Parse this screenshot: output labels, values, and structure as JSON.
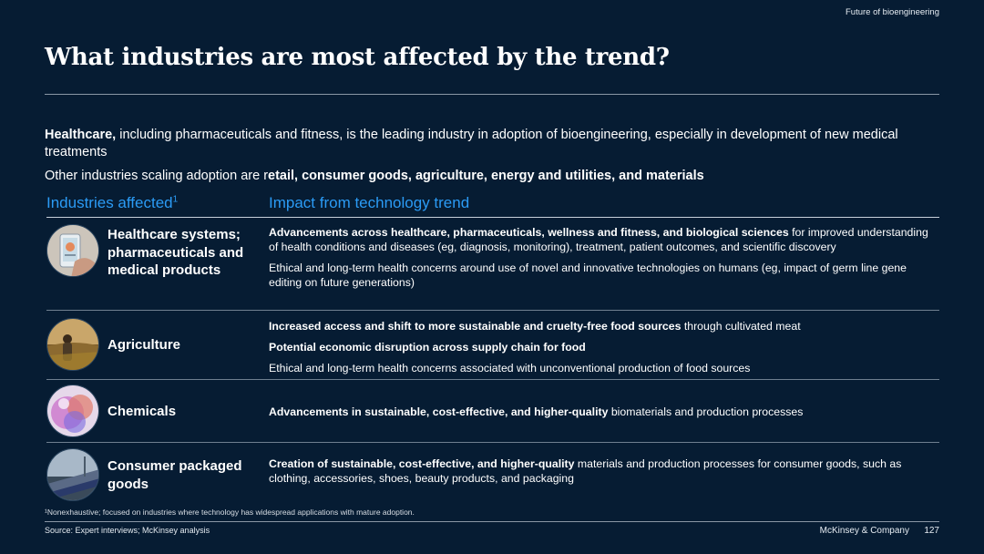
{
  "header": {
    "topic": "Future of bioengineering"
  },
  "title": "What industries are most affected by the trend?",
  "intro": {
    "p1_bold": "Healthcare,",
    "p1_rest": " including pharmaceuticals and fitness, is the leading industry in adoption of bioengineering, especially in development of new medical treatments",
    "p2_plain": "Other industries scaling adoption are r",
    "p2_bold": "etail, consumer goods, agriculture, energy and utilities, and materials"
  },
  "table": {
    "col_industries": "Industries affected",
    "col_industries_sup": "1",
    "col_impact": "Impact from technology trend",
    "rows": [
      {
        "industry": "Healthcare systems; pharmaceuticals and medical products",
        "impacts": [
          {
            "bold": "Advancements across healthcare, pharmaceuticals, wellness and fitness, and biological sciences",
            "text": " for improved understanding of health conditions and diseases (eg, diagnosis, monitoring), treatment, patient outcomes, and scientific discovery"
          },
          {
            "bold": "",
            "text": "Ethical and long-term health concerns around use of novel and innovative technologies on humans (eg, impact of germ line gene editing on future generations)"
          }
        ]
      },
      {
        "industry": "Agriculture",
        "impacts": [
          {
            "bold": "Increased access and shift to more sustainable and cruelty-free food sources",
            "text": " through cultivated meat"
          },
          {
            "bold": "Potential economic disruption across supply chain for food",
            "text": ""
          },
          {
            "bold": "",
            "text": "Ethical and long-term health concerns associated with unconventional production of food sources"
          }
        ]
      },
      {
        "industry": "Chemicals",
        "impacts": [
          {
            "bold": "Advancements in sustainable, cost-effective, and higher-quality",
            "text": " biomaterials and production processes"
          }
        ]
      },
      {
        "industry": "Consumer packaged goods",
        "impacts": [
          {
            "bold": "Creation of sustainable, cost-effective, and higher-quality",
            "text": " materials and production processes for consumer goods, such as clothing, accessories, shoes, beauty products, and packaging"
          }
        ]
      }
    ]
  },
  "footnote": "¹Nonexhaustive; focused on industries where technology has widespread applications with mature adoption.",
  "source": "Source: Expert interviews; McKinsey analysis",
  "brand": "McKinsey & Company",
  "page_number": "127",
  "colors": {
    "background": "#061c33",
    "accent": "#2b9bf5"
  }
}
